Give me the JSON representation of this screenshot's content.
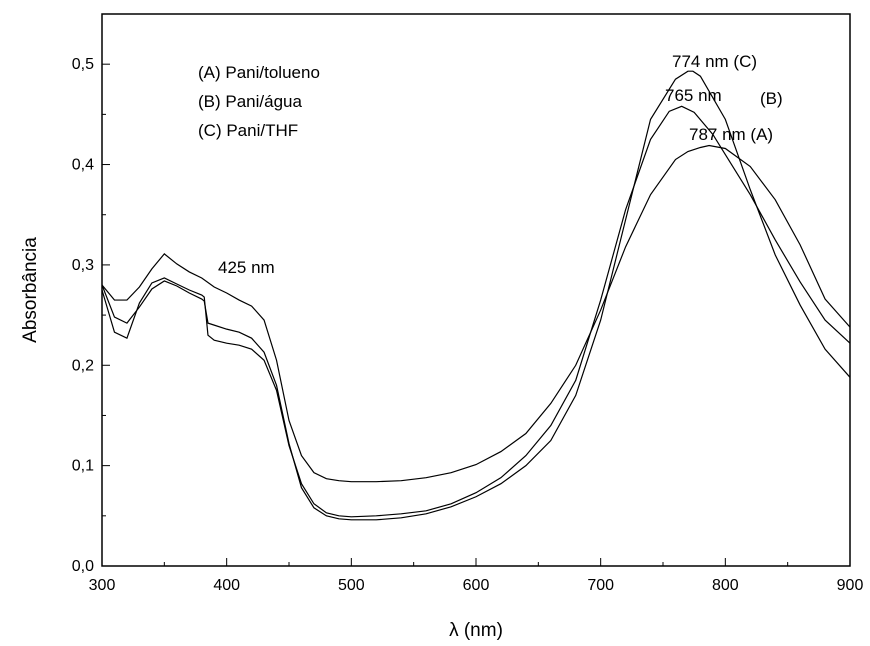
{
  "chart_data": {
    "type": "line",
    "title": "",
    "xlabel": "λ (nm)",
    "ylabel": "Absorbância",
    "xlim": [
      300,
      900
    ],
    "ylim": [
      0.0,
      0.55
    ],
    "x_ticks": [
      300,
      400,
      500,
      600,
      700,
      800,
      900
    ],
    "x_tick_labels": [
      "300",
      "400",
      "500",
      "600",
      "700",
      "800",
      "900"
    ],
    "y_ticks": [
      0.0,
      0.1,
      0.2,
      0.3,
      0.4,
      0.5
    ],
    "y_tick_labels": [
      "0,0",
      "0,1",
      "0,2",
      "0,3",
      "0,4",
      "0,5"
    ],
    "grid": false,
    "legend_text": [
      "(A) Pani/tolueno",
      "(B) Pani/água",
      "(C) Pani/THF"
    ],
    "annotations": [
      {
        "text": "774 nm (C)"
      },
      {
        "text": "765 nm"
      },
      {
        "text": "(B)"
      },
      {
        "text": "787 nm (A)"
      },
      {
        "text": "425 nm"
      }
    ],
    "series": [
      {
        "name": "A",
        "x": [
          300,
          310,
          320,
          330,
          340,
          350,
          360,
          370,
          380,
          390,
          400,
          410,
          420,
          430,
          440,
          450,
          460,
          470,
          480,
          490,
          500,
          520,
          540,
          560,
          580,
          600,
          620,
          640,
          660,
          680,
          700,
          720,
          740,
          760,
          770,
          780,
          787,
          800,
          820,
          840,
          860,
          880,
          900
        ],
        "y": [
          0.28,
          0.265,
          0.265,
          0.278,
          0.296,
          0.311,
          0.301,
          0.293,
          0.287,
          0.278,
          0.272,
          0.265,
          0.259,
          0.245,
          0.205,
          0.145,
          0.11,
          0.093,
          0.087,
          0.085,
          0.084,
          0.084,
          0.085,
          0.088,
          0.093,
          0.101,
          0.114,
          0.132,
          0.162,
          0.2,
          0.255,
          0.318,
          0.37,
          0.405,
          0.413,
          0.417,
          0.419,
          0.416,
          0.398,
          0.365,
          0.32,
          0.266,
          0.238
        ]
      },
      {
        "name": "B",
        "x": [
          300,
          310,
          320,
          330,
          340,
          350,
          360,
          370,
          380,
          382,
          385,
          390,
          400,
          410,
          420,
          430,
          440,
          450,
          460,
          470,
          480,
          490,
          500,
          520,
          540,
          560,
          580,
          600,
          620,
          640,
          660,
          680,
          700,
          720,
          740,
          755,
          765,
          775,
          790,
          800,
          820,
          840,
          860,
          880,
          900
        ],
        "y": [
          0.275,
          0.233,
          0.227,
          0.262,
          0.282,
          0.287,
          0.281,
          0.275,
          0.27,
          0.268,
          0.23,
          0.225,
          0.222,
          0.22,
          0.216,
          0.205,
          0.175,
          0.12,
          0.082,
          0.062,
          0.053,
          0.05,
          0.049,
          0.05,
          0.052,
          0.055,
          0.062,
          0.073,
          0.088,
          0.11,
          0.14,
          0.185,
          0.265,
          0.355,
          0.425,
          0.453,
          0.458,
          0.452,
          0.43,
          0.41,
          0.37,
          0.325,
          0.283,
          0.245,
          0.222
        ]
      },
      {
        "name": "C",
        "x": [
          300,
          310,
          320,
          330,
          340,
          350,
          360,
          370,
          380,
          382,
          385,
          390,
          400,
          410,
          420,
          430,
          440,
          450,
          460,
          470,
          480,
          490,
          500,
          520,
          540,
          560,
          580,
          600,
          620,
          640,
          660,
          680,
          700,
          720,
          740,
          760,
          770,
          774,
          780,
          800,
          820,
          840,
          860,
          880,
          900
        ],
        "y": [
          0.28,
          0.248,
          0.242,
          0.258,
          0.276,
          0.284,
          0.279,
          0.272,
          0.266,
          0.264,
          0.242,
          0.24,
          0.236,
          0.233,
          0.227,
          0.213,
          0.18,
          0.122,
          0.078,
          0.058,
          0.05,
          0.047,
          0.046,
          0.046,
          0.048,
          0.052,
          0.059,
          0.069,
          0.082,
          0.1,
          0.125,
          0.17,
          0.245,
          0.345,
          0.445,
          0.485,
          0.493,
          0.493,
          0.488,
          0.445,
          0.375,
          0.31,
          0.26,
          0.216,
          0.188
        ]
      }
    ]
  }
}
